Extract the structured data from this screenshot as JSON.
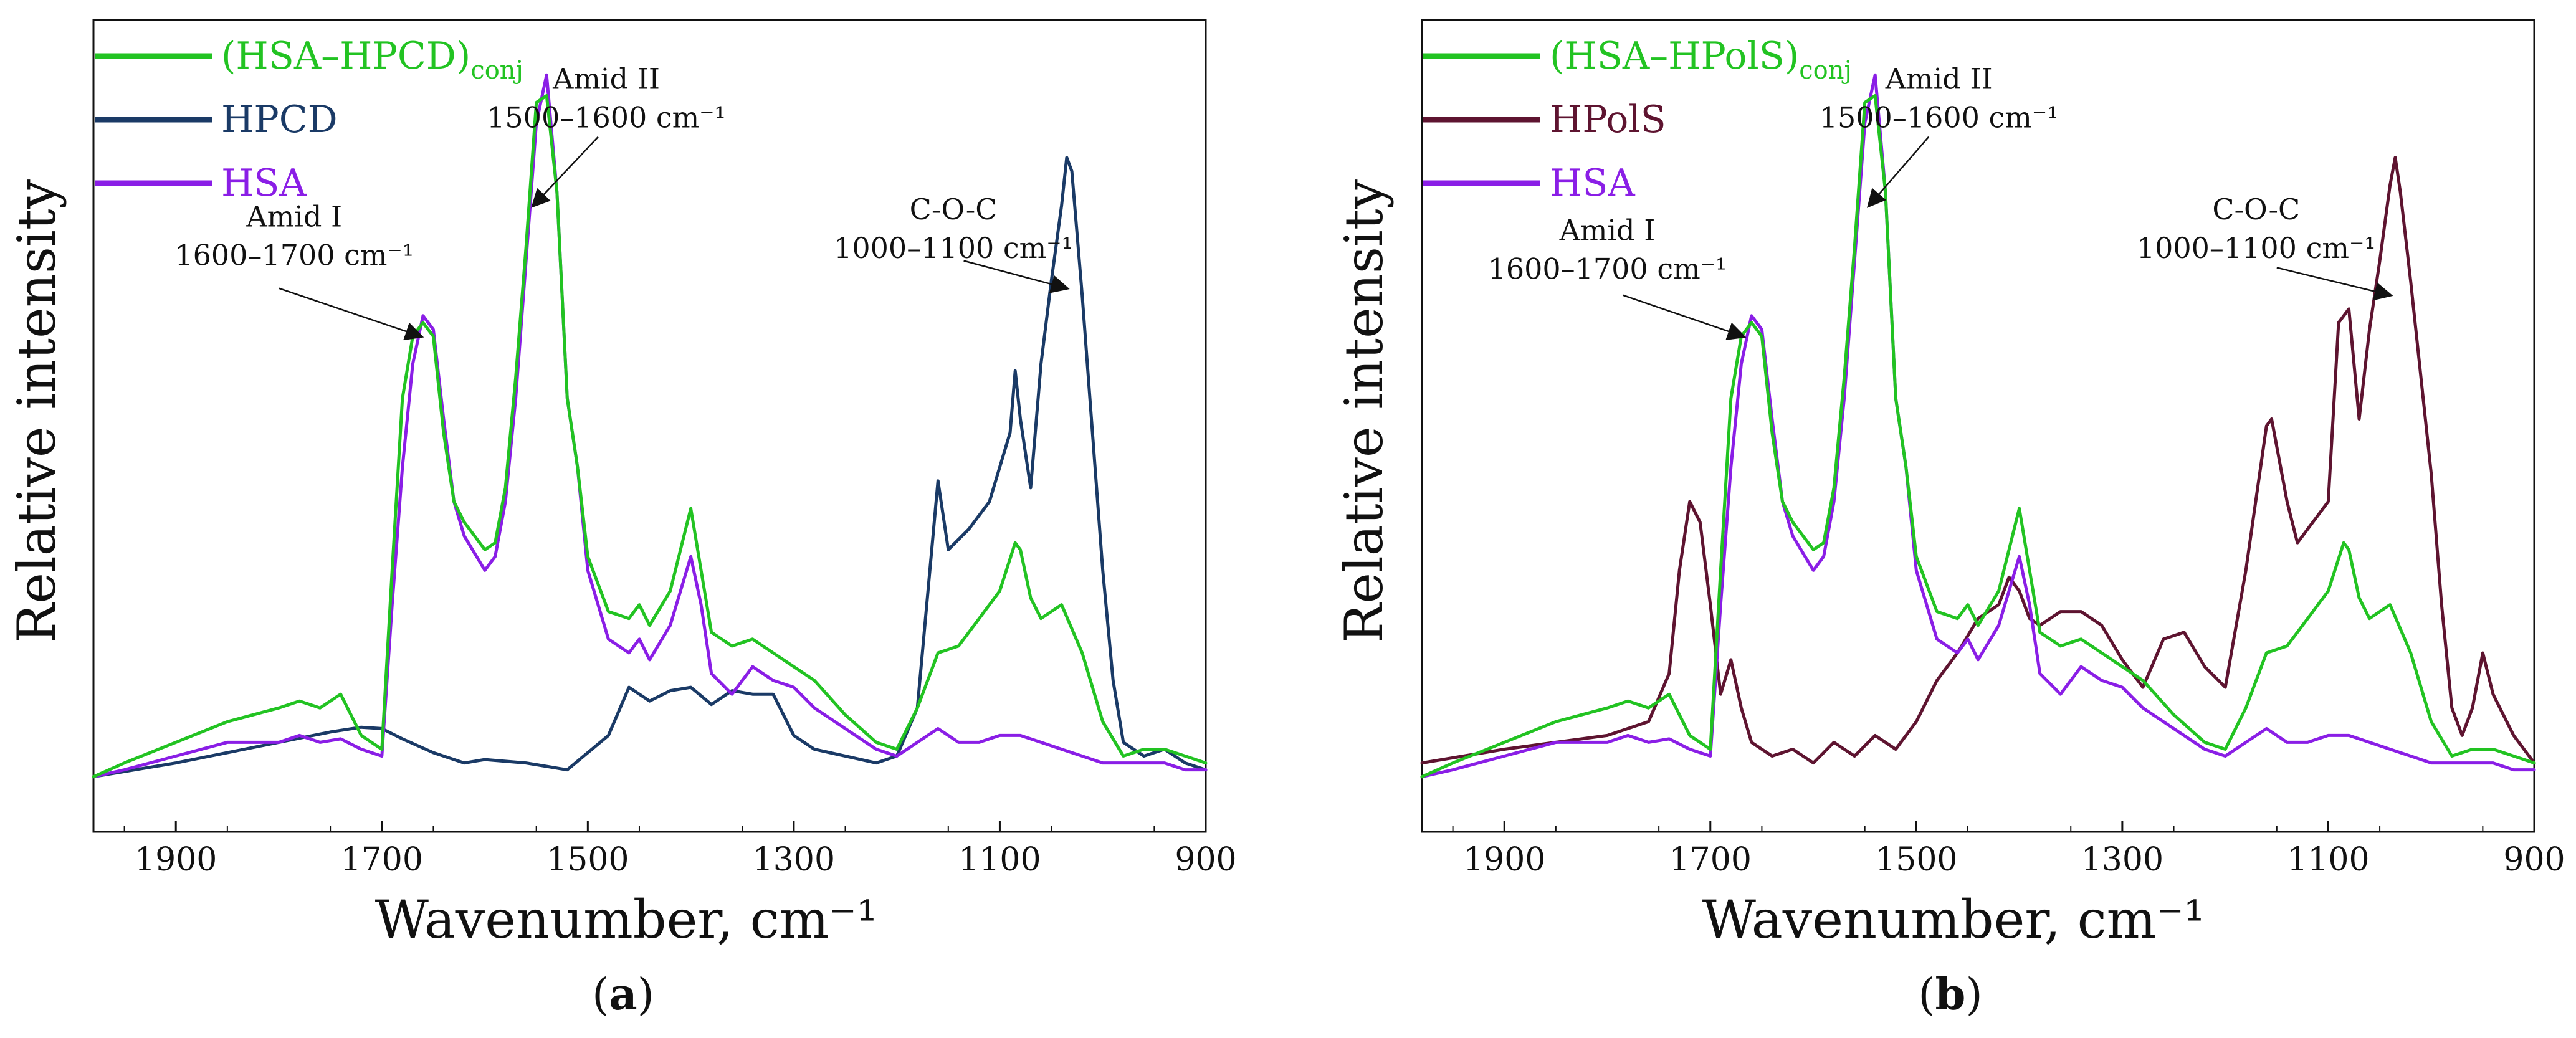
{
  "colors": {
    "green": "#22c322",
    "navy": "#1a3a66",
    "purple": "#8a1ee6",
    "maroon": "#5e1430",
    "axis": "#111111"
  },
  "chart_data": [
    {
      "type": "line",
      "id": "a",
      "caption_open": "(",
      "caption_letter": "a",
      "caption_close": ")",
      "xlabel": "Wavenumber, cm⁻¹",
      "ylabel": "Relative intensity",
      "xlim": [
        1980,
        900
      ],
      "ylim": [
        -0.08,
        1.1
      ],
      "xticks": [
        1900,
        1700,
        1500,
        1300,
        1100,
        900
      ],
      "legend_position": "top-left",
      "legend": [
        {
          "name": "(HSA–HPCD)",
          "sub": "conj",
          "color": "#22c322"
        },
        {
          "name": "HPCD",
          "sub": "",
          "color": "#1a3a66"
        },
        {
          "name": "HSA",
          "sub": "",
          "color": "#8a1ee6"
        }
      ],
      "annotations": [
        {
          "line1": "Amid I",
          "line2": "1600–1700 cm⁻¹",
          "anchor": [
            1785,
            0.8
          ],
          "arrow_to": [
            1662,
            0.64
          ],
          "arrow_from": [
            1800,
            0.71
          ]
        },
        {
          "line1": "Amid II",
          "line2": "1500–1600 cm⁻¹",
          "anchor": [
            1482,
            1.0
          ],
          "arrow_to": [
            1553,
            0.83
          ],
          "arrow_from": [
            1490,
            0.93
          ]
        },
        {
          "line1": "C-O-C",
          "line2": "1000–1100 cm⁻¹",
          "anchor": [
            1145,
            0.81
          ],
          "arrow_to": [
            1035,
            0.71
          ],
          "arrow_from": [
            1135,
            0.75
          ]
        }
      ],
      "series": [
        {
          "name": "HPCD",
          "color": "#1a3a66",
          "x": [
            1980,
            1900,
            1800,
            1750,
            1720,
            1700,
            1680,
            1650,
            1620,
            1600,
            1560,
            1520,
            1480,
            1460,
            1440,
            1420,
            1400,
            1380,
            1360,
            1340,
            1320,
            1300,
            1280,
            1250,
            1220,
            1200,
            1180,
            1160,
            1150,
            1130,
            1110,
            1100,
            1090,
            1085,
            1080,
            1070,
            1060,
            1050,
            1040,
            1035,
            1030,
            1020,
            1000,
            990,
            980,
            960,
            940,
            920,
            900
          ],
          "y": [
            0,
            0.02,
            0.05,
            0.065,
            0.072,
            0.07,
            0.055,
            0.035,
            0.02,
            0.025,
            0.02,
            0.01,
            0.06,
            0.13,
            0.11,
            0.125,
            0.13,
            0.105,
            0.125,
            0.12,
            0.12,
            0.06,
            0.04,
            0.03,
            0.02,
            0.03,
            0.1,
            0.43,
            0.33,
            0.36,
            0.4,
            0.45,
            0.5,
            0.59,
            0.52,
            0.42,
            0.6,
            0.72,
            0.83,
            0.9,
            0.88,
            0.7,
            0.3,
            0.14,
            0.05,
            0.03,
            0.04,
            0.02,
            0.01
          ]
        },
        {
          "name": "HSA",
          "color": "#8a1ee6",
          "x": [
            1980,
            1950,
            1900,
            1850,
            1800,
            1780,
            1760,
            1740,
            1720,
            1700,
            1690,
            1680,
            1670,
            1660,
            1650,
            1640,
            1630,
            1620,
            1600,
            1590,
            1580,
            1570,
            1560,
            1550,
            1540,
            1530,
            1520,
            1510,
            1500,
            1480,
            1460,
            1450,
            1440,
            1420,
            1400,
            1390,
            1380,
            1360,
            1340,
            1320,
            1300,
            1280,
            1250,
            1220,
            1200,
            1180,
            1160,
            1140,
            1120,
            1100,
            1080,
            1060,
            1040,
            1020,
            1000,
            980,
            960,
            940,
            920,
            900
          ],
          "y": [
            0.0,
            0.01,
            0.03,
            0.05,
            0.05,
            0.06,
            0.05,
            0.055,
            0.04,
            0.03,
            0.25,
            0.45,
            0.6,
            0.67,
            0.65,
            0.52,
            0.4,
            0.35,
            0.3,
            0.32,
            0.4,
            0.55,
            0.75,
            0.95,
            1.02,
            0.85,
            0.55,
            0.45,
            0.3,
            0.2,
            0.18,
            0.2,
            0.17,
            0.22,
            0.32,
            0.25,
            0.15,
            0.12,
            0.16,
            0.14,
            0.13,
            0.1,
            0.07,
            0.04,
            0.03,
            0.05,
            0.07,
            0.05,
            0.05,
            0.06,
            0.06,
            0.05,
            0.04,
            0.03,
            0.02,
            0.02,
            0.02,
            0.02,
            0.01,
            0.01
          ]
        },
        {
          "name": "(HSA–HPCD)conj",
          "color": "#22c322",
          "x": [
            1980,
            1950,
            1900,
            1850,
            1800,
            1780,
            1760,
            1740,
            1720,
            1700,
            1690,
            1680,
            1670,
            1660,
            1650,
            1640,
            1630,
            1620,
            1600,
            1590,
            1580,
            1570,
            1560,
            1550,
            1540,
            1530,
            1520,
            1510,
            1500,
            1480,
            1460,
            1450,
            1440,
            1420,
            1400,
            1390,
            1380,
            1360,
            1340,
            1320,
            1300,
            1280,
            1250,
            1220,
            1200,
            1180,
            1160,
            1140,
            1120,
            1100,
            1085,
            1080,
            1070,
            1060,
            1040,
            1020,
            1000,
            980,
            960,
            940,
            920,
            900
          ],
          "y": [
            0.0,
            0.02,
            0.05,
            0.08,
            0.1,
            0.11,
            0.1,
            0.12,
            0.06,
            0.04,
            0.3,
            0.55,
            0.64,
            0.66,
            0.64,
            0.5,
            0.4,
            0.37,
            0.33,
            0.34,
            0.42,
            0.58,
            0.77,
            0.98,
            0.99,
            0.85,
            0.55,
            0.45,
            0.32,
            0.24,
            0.23,
            0.25,
            0.22,
            0.27,
            0.39,
            0.3,
            0.21,
            0.19,
            0.2,
            0.18,
            0.16,
            0.14,
            0.09,
            0.05,
            0.04,
            0.1,
            0.18,
            0.19,
            0.23,
            0.27,
            0.34,
            0.33,
            0.26,
            0.23,
            0.25,
            0.18,
            0.08,
            0.03,
            0.04,
            0.04,
            0.03,
            0.02
          ]
        }
      ]
    },
    {
      "type": "line",
      "id": "b",
      "caption_open": "(",
      "caption_letter": "b",
      "caption_close": ")",
      "xlabel": "Wavenumber, cm⁻¹",
      "ylabel": "Relative intensity",
      "xlim": [
        1980,
        900
      ],
      "ylim": [
        -0.08,
        1.1
      ],
      "xticks": [
        1900,
        1700,
        1500,
        1300,
        1100,
        900
      ],
      "legend_position": "top-left",
      "legend": [
        {
          "name": "(HSA–HPolS)",
          "sub": "conj",
          "color": "#22c322"
        },
        {
          "name": "HPolS",
          "sub": "",
          "color": "#5e1430"
        },
        {
          "name": "HSA",
          "sub": "",
          "color": "#8a1ee6"
        }
      ],
      "annotations": [
        {
          "line1": "Amid I",
          "line2": "1600–1700 cm⁻¹",
          "anchor": [
            1800,
            0.78
          ],
          "arrow_to": [
            1668,
            0.64
          ],
          "arrow_from": [
            1785,
            0.7
          ]
        },
        {
          "line1": "Amid II",
          "line2": "1500–1600 cm⁻¹",
          "anchor": [
            1478,
            1.0
          ],
          "arrow_to": [
            1546,
            0.83
          ],
          "arrow_from": [
            1488,
            0.93
          ]
        },
        {
          "line1": "C-O-C",
          "line2": "1000–1100 cm⁻¹",
          "anchor": [
            1170,
            0.81
          ],
          "arrow_to": [
            1040,
            0.7
          ],
          "arrow_from": [
            1150,
            0.74
          ]
        }
      ],
      "series": [
        {
          "name": "HPolS",
          "color": "#5e1430",
          "x": [
            1980,
            1900,
            1850,
            1800,
            1760,
            1740,
            1730,
            1720,
            1710,
            1700,
            1690,
            1680,
            1670,
            1660,
            1640,
            1620,
            1600,
            1580,
            1560,
            1540,
            1520,
            1500,
            1480,
            1460,
            1440,
            1420,
            1410,
            1400,
            1390,
            1380,
            1360,
            1340,
            1320,
            1300,
            1280,
            1260,
            1240,
            1220,
            1200,
            1180,
            1160,
            1155,
            1140,
            1130,
            1110,
            1100,
            1090,
            1080,
            1070,
            1060,
            1050,
            1040,
            1035,
            1030,
            1020,
            1000,
            990,
            980,
            970,
            960,
            950,
            940,
            920,
            900
          ],
          "y": [
            0.02,
            0.04,
            0.05,
            0.06,
            0.08,
            0.15,
            0.3,
            0.4,
            0.37,
            0.25,
            0.12,
            0.17,
            0.1,
            0.05,
            0.03,
            0.04,
            0.02,
            0.05,
            0.03,
            0.06,
            0.04,
            0.08,
            0.14,
            0.18,
            0.23,
            0.25,
            0.29,
            0.27,
            0.23,
            0.22,
            0.24,
            0.24,
            0.22,
            0.17,
            0.13,
            0.2,
            0.21,
            0.16,
            0.13,
            0.3,
            0.51,
            0.52,
            0.4,
            0.34,
            0.38,
            0.4,
            0.66,
            0.68,
            0.52,
            0.65,
            0.75,
            0.86,
            0.9,
            0.85,
            0.72,
            0.44,
            0.25,
            0.1,
            0.06,
            0.1,
            0.18,
            0.12,
            0.06,
            0.02
          ]
        },
        {
          "name": "HSA",
          "color": "#8a1ee6",
          "x": [
            1980,
            1950,
            1900,
            1850,
            1800,
            1780,
            1760,
            1740,
            1720,
            1700,
            1690,
            1680,
            1670,
            1660,
            1650,
            1640,
            1630,
            1620,
            1600,
            1590,
            1580,
            1570,
            1560,
            1550,
            1540,
            1530,
            1520,
            1510,
            1500,
            1480,
            1460,
            1450,
            1440,
            1420,
            1400,
            1390,
            1380,
            1360,
            1340,
            1320,
            1300,
            1280,
            1250,
            1220,
            1200,
            1180,
            1160,
            1140,
            1120,
            1100,
            1080,
            1060,
            1040,
            1020,
            1000,
            980,
            960,
            940,
            920,
            900
          ],
          "y": [
            0.0,
            0.01,
            0.03,
            0.05,
            0.05,
            0.06,
            0.05,
            0.055,
            0.04,
            0.03,
            0.25,
            0.45,
            0.6,
            0.67,
            0.65,
            0.52,
            0.4,
            0.35,
            0.3,
            0.32,
            0.4,
            0.55,
            0.75,
            0.95,
            1.02,
            0.85,
            0.55,
            0.45,
            0.3,
            0.2,
            0.18,
            0.2,
            0.17,
            0.22,
            0.32,
            0.25,
            0.15,
            0.12,
            0.16,
            0.14,
            0.13,
            0.1,
            0.07,
            0.04,
            0.03,
            0.05,
            0.07,
            0.05,
            0.05,
            0.06,
            0.06,
            0.05,
            0.04,
            0.03,
            0.02,
            0.02,
            0.02,
            0.02,
            0.01,
            0.01
          ]
        },
        {
          "name": "(HSA–HPolS)conj",
          "color": "#22c322",
          "x": [
            1980,
            1950,
            1900,
            1850,
            1800,
            1780,
            1760,
            1740,
            1720,
            1700,
            1690,
            1680,
            1670,
            1660,
            1650,
            1640,
            1630,
            1620,
            1600,
            1590,
            1580,
            1570,
            1560,
            1550,
            1540,
            1530,
            1520,
            1510,
            1500,
            1480,
            1460,
            1450,
            1440,
            1420,
            1400,
            1390,
            1380,
            1360,
            1340,
            1320,
            1300,
            1280,
            1250,
            1220,
            1200,
            1180,
            1160,
            1140,
            1120,
            1100,
            1085,
            1080,
            1070,
            1060,
            1040,
            1020,
            1000,
            980,
            960,
            940,
            920,
            900
          ],
          "y": [
            0.0,
            0.02,
            0.05,
            0.08,
            0.1,
            0.11,
            0.1,
            0.12,
            0.06,
            0.04,
            0.3,
            0.55,
            0.64,
            0.66,
            0.64,
            0.5,
            0.4,
            0.37,
            0.33,
            0.34,
            0.42,
            0.58,
            0.77,
            0.98,
            0.99,
            0.85,
            0.55,
            0.45,
            0.32,
            0.24,
            0.23,
            0.25,
            0.22,
            0.27,
            0.39,
            0.3,
            0.21,
            0.19,
            0.2,
            0.18,
            0.16,
            0.14,
            0.09,
            0.05,
            0.04,
            0.1,
            0.18,
            0.19,
            0.23,
            0.27,
            0.34,
            0.33,
            0.26,
            0.23,
            0.25,
            0.18,
            0.08,
            0.03,
            0.04,
            0.04,
            0.03,
            0.02
          ]
        }
      ]
    }
  ]
}
